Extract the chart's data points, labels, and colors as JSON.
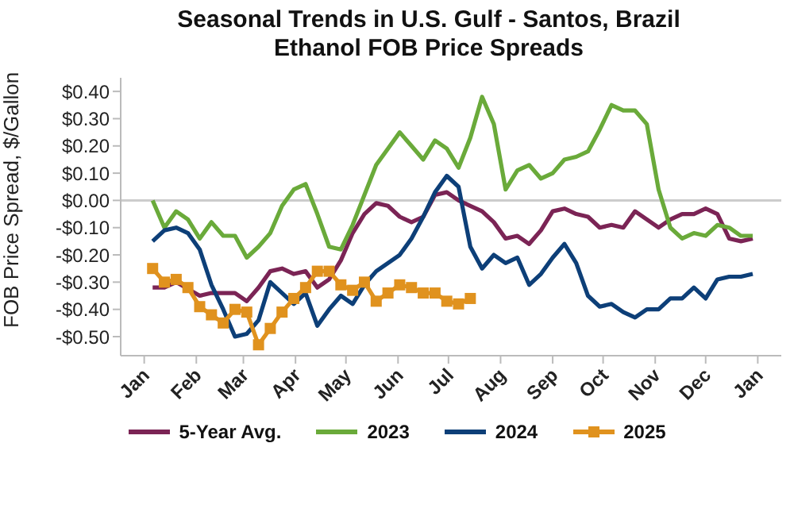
{
  "chart_data": {
    "type": "line",
    "title": "Seasonal Trends in U.S. Gulf - Santos, Brazil\nEthanol FOB Price Spreads",
    "ylabel": "FOB Price Spread, $/Gallon",
    "xlim": [
      "2024-12-18",
      "2026-01-15"
    ],
    "xticks": [
      {
        "value": "2025-01-01",
        "label": "Jan"
      },
      {
        "value": "2025-02-01",
        "label": "Feb"
      },
      {
        "value": "2025-03-01",
        "label": "Mar"
      },
      {
        "value": "2025-04-01",
        "label": "Apr"
      },
      {
        "value": "2025-05-01",
        "label": "May"
      },
      {
        "value": "2025-06-01",
        "label": "Jun"
      },
      {
        "value": "2025-07-01",
        "label": "Jul"
      },
      {
        "value": "2025-08-01",
        "label": "Aug"
      },
      {
        "value": "2025-09-01",
        "label": "Sep"
      },
      {
        "value": "2025-10-01",
        "label": "Oct"
      },
      {
        "value": "2025-11-01",
        "label": "Nov"
      },
      {
        "value": "2025-12-01",
        "label": "Dec"
      },
      {
        "value": "2026-01-01",
        "label": "Jan"
      }
    ],
    "ylim": [
      -0.57,
      0.45
    ],
    "yticks": [
      {
        "value": 0.4,
        "label": "$0.40"
      },
      {
        "value": 0.3,
        "label": "$0.30"
      },
      {
        "value": 0.2,
        "label": "$0.20"
      },
      {
        "value": 0.1,
        "label": "$0.10"
      },
      {
        "value": 0,
        "label": "$0.00"
      },
      {
        "value": -0.1,
        "label": "-$0.10"
      },
      {
        "value": -0.2,
        "label": "-$0.20"
      },
      {
        "value": -0.3,
        "label": "-$0.30"
      },
      {
        "value": -0.4,
        "label": "-$0.40"
      },
      {
        "value": -0.5,
        "label": "-$0.50"
      }
    ],
    "legend": "bottom",
    "marker": "none",
    "line_style": "solid",
    "ref_lines": [
      {
        "axis": "y",
        "value": 0,
        "color": "#cccccc"
      }
    ],
    "x": [
      "2025-01-06",
      "2025-01-13",
      "2025-01-20",
      "2025-01-27",
      "2025-02-03",
      "2025-02-10",
      "2025-02-17",
      "2025-02-24",
      "2025-03-03",
      "2025-03-10",
      "2025-03-17",
      "2025-03-24",
      "2025-03-31",
      "2025-04-07",
      "2025-04-14",
      "2025-04-21",
      "2025-04-28",
      "2025-05-05",
      "2025-05-12",
      "2025-05-19",
      "2025-05-26",
      "2025-06-02",
      "2025-06-09",
      "2025-06-16",
      "2025-06-23",
      "2025-06-30",
      "2025-07-07",
      "2025-07-14",
      "2025-07-21",
      "2025-07-28",
      "2025-08-04",
      "2025-08-11",
      "2025-08-18",
      "2025-08-25",
      "2025-09-01",
      "2025-09-08",
      "2025-09-15",
      "2025-09-22",
      "2025-09-29",
      "2025-10-06",
      "2025-10-13",
      "2025-10-20",
      "2025-10-27",
      "2025-11-03",
      "2025-11-10",
      "2025-11-17",
      "2025-11-24",
      "2025-12-01",
      "2025-12-08",
      "2025-12-15",
      "2025-12-22",
      "2025-12-29"
    ],
    "series": [
      {
        "name": "5-Year Avg.",
        "color": "#7b2455",
        "x": [
          "2025-01-06",
          "2025-01-13",
          "2025-01-20",
          "2025-02-03",
          "2025-02-10",
          "2025-02-24",
          "2025-03-03",
          "2025-03-10",
          "2025-03-17",
          "2025-03-24",
          "2025-03-31",
          "2025-04-07",
          "2025-04-14",
          "2025-04-21",
          "2025-04-28",
          "2025-05-05",
          "2025-05-12",
          "2025-05-19",
          "2025-05-26",
          "2025-06-02",
          "2025-06-09",
          "2025-06-16",
          "2025-06-23",
          "2025-06-30",
          "2025-07-07",
          "2025-07-14",
          "2025-07-21",
          "2025-07-28",
          "2025-08-04",
          "2025-08-11",
          "2025-08-18",
          "2025-08-25",
          "2025-09-01",
          "2025-09-08",
          "2025-09-15",
          "2025-09-22",
          "2025-09-29",
          "2025-10-06",
          "2025-10-13",
          "2025-10-20",
          "2025-10-27",
          "2025-11-03",
          "2025-11-10",
          "2025-11-17",
          "2025-11-24",
          "2025-12-01",
          "2025-12-08",
          "2025-12-15",
          "2025-12-22",
          "2025-12-29"
        ],
        "values": [
          -0.32,
          -0.32,
          -0.3,
          -0.35,
          -0.34,
          -0.34,
          -0.37,
          -0.32,
          -0.26,
          -0.25,
          -0.27,
          -0.26,
          -0.32,
          -0.29,
          -0.22,
          -0.12,
          -0.05,
          -0.01,
          -0.02,
          -0.06,
          -0.08,
          -0.06,
          0.02,
          0.03,
          0.0,
          -0.02,
          -0.04,
          -0.08,
          -0.14,
          -0.13,
          -0.16,
          -0.11,
          -0.04,
          -0.03,
          -0.05,
          -0.06,
          -0.1,
          -0.09,
          -0.1,
          -0.04,
          -0.07,
          -0.1,
          -0.07,
          -0.05,
          -0.05,
          -0.03,
          -0.05,
          -0.14,
          -0.15,
          -0.14
        ]
      },
      {
        "name": "2023",
        "color": "#6aaa3a",
        "values": [
          0.0,
          -0.1,
          -0.04,
          -0.07,
          -0.14,
          -0.08,
          -0.13,
          -0.13,
          -0.21,
          -0.17,
          -0.12,
          -0.02,
          0.04,
          0.06,
          -0.05,
          -0.17,
          -0.18,
          -0.09,
          0.02,
          0.13,
          0.19,
          0.25,
          0.2,
          0.15,
          0.22,
          0.19,
          0.12,
          0.23,
          0.38,
          0.28,
          0.04,
          0.11,
          0.13,
          0.08,
          0.1,
          0.15,
          0.16,
          0.18,
          0.26,
          0.35,
          0.33,
          0.33,
          0.28,
          0.04,
          -0.1,
          -0.14,
          -0.12,
          -0.13,
          -0.09,
          -0.1,
          -0.13,
          -0.13
        ]
      },
      {
        "name": "2024",
        "color": "#0d3f78",
        "values": [
          -0.15,
          -0.11,
          -0.1,
          -0.12,
          -0.18,
          -0.31,
          -0.4,
          -0.5,
          -0.49,
          -0.44,
          -0.3,
          -0.34,
          -0.38,
          -0.34,
          -0.46,
          -0.4,
          -0.35,
          -0.38,
          -0.31,
          -0.26,
          -0.23,
          -0.2,
          -0.14,
          -0.06,
          0.03,
          0.09,
          0.05,
          -0.17,
          -0.25,
          -0.2,
          -0.23,
          -0.21,
          -0.31,
          -0.27,
          -0.21,
          -0.16,
          -0.23,
          -0.35,
          -0.39,
          -0.38,
          -0.41,
          -0.43,
          -0.4,
          -0.4,
          -0.36,
          -0.36,
          -0.32,
          -0.36,
          -0.29,
          -0.28,
          -0.28,
          -0.27
        ]
      },
      {
        "name": "2025",
        "color": "#e0921e",
        "marker": "square",
        "x": [
          "2025-01-06",
          "2025-01-13",
          "2025-01-20",
          "2025-01-27",
          "2025-02-03",
          "2025-02-10",
          "2025-02-17",
          "2025-02-24",
          "2025-03-03",
          "2025-03-10",
          "2025-03-17",
          "2025-03-24",
          "2025-03-31",
          "2025-04-07",
          "2025-04-14",
          "2025-04-21",
          "2025-04-28",
          "2025-05-05",
          "2025-05-12",
          "2025-05-19",
          "2025-05-26",
          "2025-06-02",
          "2025-06-09",
          "2025-06-16",
          "2025-06-23",
          "2025-06-30",
          "2025-07-07",
          "2025-07-14"
        ],
        "values": [
          -0.25,
          -0.3,
          -0.29,
          -0.32,
          -0.39,
          -0.42,
          -0.45,
          -0.4,
          -0.41,
          -0.53,
          -0.47,
          -0.41,
          -0.36,
          -0.32,
          -0.26,
          -0.26,
          -0.31,
          -0.33,
          -0.3,
          -0.37,
          -0.34,
          -0.31,
          -0.32,
          -0.34,
          -0.34,
          -0.37,
          -0.38,
          -0.36
        ]
      }
    ]
  }
}
